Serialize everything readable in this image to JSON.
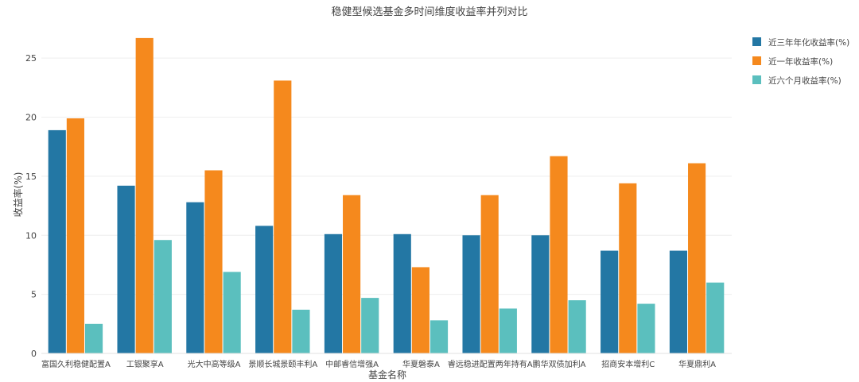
{
  "chart_data": {
    "type": "bar",
    "title": "稳健型候选基金多时间维度收益率并列对比",
    "xlabel": "基金名称",
    "ylabel": "收益率(%)",
    "ylim": [
      0,
      27.5
    ],
    "yticks": [
      0,
      5,
      10,
      15,
      20,
      25
    ],
    "grid": true,
    "legend_position": "top-right",
    "categories": [
      "富国久利稳健配置A",
      "工银聚享A",
      "光大中高等级A",
      "景顺长城景颐丰利A",
      "中邮睿信增强A",
      "华夏磐泰A",
      "睿远稳进配置两年持有A",
      "鹏华双债加利A",
      "招商安本增利C",
      "华夏鼎利A"
    ],
    "series": [
      {
        "name": "近三年年化收益率(%)",
        "color": "#2377a4",
        "values": [
          18.9,
          14.2,
          12.8,
          10.8,
          10.1,
          10.1,
          10.0,
          10.0,
          8.7,
          8.7
        ]
      },
      {
        "name": "近一年收益率(%)",
        "color": "#f5891d",
        "values": [
          19.9,
          26.7,
          15.5,
          23.1,
          13.4,
          7.3,
          13.4,
          16.7,
          14.4,
          16.1
        ]
      },
      {
        "name": "近六个月收益率(%)",
        "color": "#5bbfbe",
        "values": [
          2.5,
          9.6,
          6.9,
          3.7,
          4.7,
          2.8,
          3.8,
          4.5,
          4.2,
          6.0
        ]
      }
    ]
  }
}
